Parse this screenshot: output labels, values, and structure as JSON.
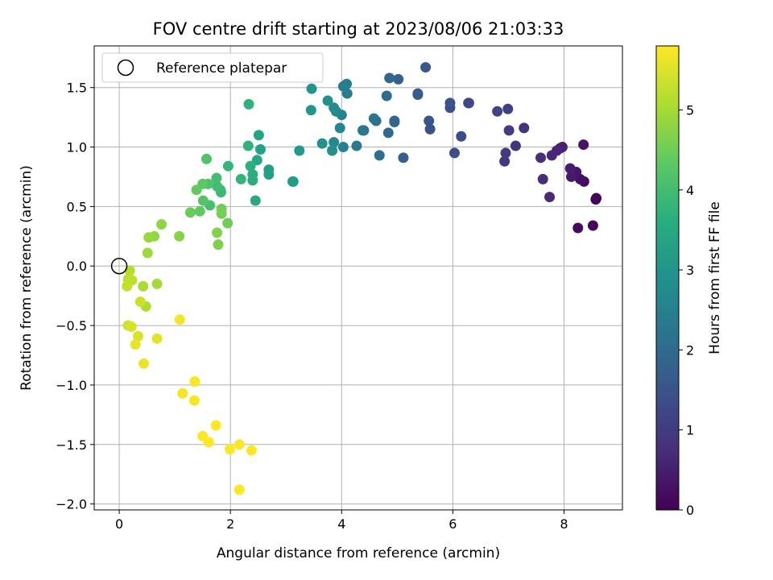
{
  "chart_data": {
    "type": "scatter",
    "title": "FOV centre drift starting at 2023/08/06 21:03:33",
    "xlabel": "Angular distance from reference (arcmin)",
    "ylabel": "Rotation from reference (arcmin)",
    "xlim": [
      -0.45,
      9.05
    ],
    "ylim": [
      -2.05,
      1.85
    ],
    "x_ticks": [
      0,
      2,
      4,
      6,
      8
    ],
    "y_ticks": [
      -2.0,
      -1.5,
      -1.0,
      -0.5,
      0.0,
      0.5,
      1.0,
      1.5
    ],
    "x_tick_labels": [
      "0",
      "2",
      "4",
      "6",
      "8"
    ],
    "y_tick_labels": [
      "−2.0",
      "−1.5",
      "−1.0",
      "−0.5",
      "0.0",
      "0.5",
      "1.0",
      "1.5"
    ],
    "grid": true,
    "legend": {
      "location": "upper-left",
      "entries": [
        "Reference platepar"
      ]
    },
    "reference_point": {
      "x": 0,
      "y": 0
    },
    "colorbar": {
      "label": "Hours from first FF file",
      "colormap": "viridis",
      "range": [
        0,
        5.8
      ],
      "ticks": [
        0,
        1,
        2,
        3,
        4,
        5
      ],
      "tick_labels": [
        "0",
        "1",
        "2",
        "3",
        "4",
        "5"
      ]
    },
    "points": [
      {
        "x": 8.58,
        "y": 0.57,
        "c": 0.0
      },
      {
        "x": 8.57,
        "y": 0.56,
        "c": 0.05
      },
      {
        "x": 8.52,
        "y": 0.34,
        "c": 0.1
      },
      {
        "x": 8.25,
        "y": 0.32,
        "c": 0.15
      },
      {
        "x": 8.36,
        "y": 0.71,
        "c": 0.2
      },
      {
        "x": 8.29,
        "y": 0.73,
        "c": 0.25
      },
      {
        "x": 8.35,
        "y": 1.02,
        "c": 0.3
      },
      {
        "x": 8.22,
        "y": 0.79,
        "c": 0.35
      },
      {
        "x": 8.13,
        "y": 0.75,
        "c": 0.4
      },
      {
        "x": 8.11,
        "y": 0.82,
        "c": 0.45
      },
      {
        "x": 7.97,
        "y": 1.0,
        "c": 0.5
      },
      {
        "x": 7.93,
        "y": 0.99,
        "c": 0.55
      },
      {
        "x": 7.87,
        "y": 0.97,
        "c": 0.6
      },
      {
        "x": 7.78,
        "y": 0.93,
        "c": 0.65
      },
      {
        "x": 7.74,
        "y": 0.58,
        "c": 0.7
      },
      {
        "x": 7.62,
        "y": 0.73,
        "c": 0.75
      },
      {
        "x": 7.58,
        "y": 0.91,
        "c": 0.8
      },
      {
        "x": 7.28,
        "y": 1.16,
        "c": 0.85
      },
      {
        "x": 7.13,
        "y": 1.01,
        "c": 0.9
      },
      {
        "x": 6.93,
        "y": 0.88,
        "c": 0.95
      },
      {
        "x": 6.95,
        "y": 0.95,
        "c": 1.0
      },
      {
        "x": 7.01,
        "y": 1.14,
        "c": 1.05
      },
      {
        "x": 6.99,
        "y": 1.32,
        "c": 1.1
      },
      {
        "x": 6.8,
        "y": 1.3,
        "c": 1.15
      },
      {
        "x": 6.29,
        "y": 1.37,
        "c": 1.2
      },
      {
        "x": 6.28,
        "y": 1.37,
        "c": 1.25
      },
      {
        "x": 6.15,
        "y": 1.09,
        "c": 1.3
      },
      {
        "x": 6.03,
        "y": 0.95,
        "c": 1.35
      },
      {
        "x": 5.95,
        "y": 1.33,
        "c": 1.4
      },
      {
        "x": 5.95,
        "y": 1.37,
        "c": 1.45
      },
      {
        "x": 5.59,
        "y": 1.15,
        "c": 1.5
      },
      {
        "x": 5.57,
        "y": 1.22,
        "c": 1.55
      },
      {
        "x": 5.51,
        "y": 1.67,
        "c": 1.6
      },
      {
        "x": 5.37,
        "y": 1.44,
        "c": 1.65
      },
      {
        "x": 5.37,
        "y": 1.45,
        "c": 1.7
      },
      {
        "x": 5.11,
        "y": 0.91,
        "c": 1.75
      },
      {
        "x": 5.02,
        "y": 1.57,
        "c": 1.8
      },
      {
        "x": 4.95,
        "y": 1.22,
        "c": 1.85
      },
      {
        "x": 4.95,
        "y": 1.21,
        "c": 1.9
      },
      {
        "x": 4.86,
        "y": 1.58,
        "c": 1.95
      },
      {
        "x": 4.84,
        "y": 1.12,
        "c": 2.0
      },
      {
        "x": 4.81,
        "y": 1.43,
        "c": 2.05
      },
      {
        "x": 4.68,
        "y": 0.93,
        "c": 2.1
      },
      {
        "x": 4.62,
        "y": 1.22,
        "c": 2.15
      },
      {
        "x": 4.58,
        "y": 1.24,
        "c": 2.2
      },
      {
        "x": 4.4,
        "y": 1.14,
        "c": 2.25
      },
      {
        "x": 4.38,
        "y": 1.14,
        "c": 2.3
      },
      {
        "x": 4.27,
        "y": 1.01,
        "c": 2.35
      },
      {
        "x": 4.1,
        "y": 1.45,
        "c": 2.4
      },
      {
        "x": 4.09,
        "y": 1.53,
        "c": 2.45
      },
      {
        "x": 4.03,
        "y": 1.51,
        "c": 2.5
      },
      {
        "x": 4.03,
        "y": 1.0,
        "c": 2.55
      },
      {
        "x": 4.0,
        "y": 1.27,
        "c": 2.6
      },
      {
        "x": 3.97,
        "y": 1.16,
        "c": 2.65
      },
      {
        "x": 3.9,
        "y": 1.3,
        "c": 2.7
      },
      {
        "x": 3.86,
        "y": 1.04,
        "c": 2.75
      },
      {
        "x": 3.86,
        "y": 1.33,
        "c": 2.8
      },
      {
        "x": 3.83,
        "y": 0.97,
        "c": 2.85
      },
      {
        "x": 3.75,
        "y": 1.39,
        "c": 2.9
      },
      {
        "x": 3.65,
        "y": 1.03,
        "c": 2.95
      },
      {
        "x": 3.46,
        "y": 1.49,
        "c": 3.0
      },
      {
        "x": 3.45,
        "y": 1.31,
        "c": 3.05
      },
      {
        "x": 3.24,
        "y": 0.97,
        "c": 3.1
      },
      {
        "x": 3.13,
        "y": 0.71,
        "c": 3.15
      },
      {
        "x": 3.12,
        "y": 0.71,
        "c": 3.2
      },
      {
        "x": 2.69,
        "y": 0.81,
        "c": 3.25
      },
      {
        "x": 2.69,
        "y": 0.77,
        "c": 3.3
      },
      {
        "x": 2.54,
        "y": 0.98,
        "c": 3.35
      },
      {
        "x": 2.51,
        "y": 1.1,
        "c": 3.4
      },
      {
        "x": 2.48,
        "y": 0.89,
        "c": 3.45
      },
      {
        "x": 2.45,
        "y": 0.55,
        "c": 3.5
      },
      {
        "x": 2.4,
        "y": 0.72,
        "c": 3.55
      },
      {
        "x": 2.4,
        "y": 0.77,
        "c": 3.6
      },
      {
        "x": 2.36,
        "y": 0.84,
        "c": 3.65
      },
      {
        "x": 2.33,
        "y": 1.36,
        "c": 3.7
      },
      {
        "x": 2.32,
        "y": 1.01,
        "c": 3.75
      },
      {
        "x": 2.19,
        "y": 0.73,
        "c": 3.8
      },
      {
        "x": 1.96,
        "y": 0.84,
        "c": 3.85
      },
      {
        "x": 1.83,
        "y": 0.62,
        "c": 3.9
      },
      {
        "x": 1.82,
        "y": 0.64,
        "c": 3.95
      },
      {
        "x": 1.76,
        "y": 0.67,
        "c": 4.0
      },
      {
        "x": 1.75,
        "y": 0.74,
        "c": 4.05
      },
      {
        "x": 1.63,
        "y": 0.51,
        "c": 4.1
      },
      {
        "x": 1.6,
        "y": 0.69,
        "c": 4.15
      },
      {
        "x": 1.57,
        "y": 0.9,
        "c": 4.2
      },
      {
        "x": 1.51,
        "y": 0.55,
        "c": 4.25
      },
      {
        "x": 1.5,
        "y": 0.69,
        "c": 4.3
      },
      {
        "x": 1.45,
        "y": 0.46,
        "c": 4.35
      },
      {
        "x": 1.39,
        "y": 0.64,
        "c": 4.4
      },
      {
        "x": 1.28,
        "y": 0.45,
        "c": 4.45
      },
      {
        "x": 1.95,
        "y": 0.36,
        "c": 4.5
      },
      {
        "x": 1.84,
        "y": 0.48,
        "c": 4.55
      },
      {
        "x": 1.84,
        "y": 0.44,
        "c": 4.6
      },
      {
        "x": 1.78,
        "y": 0.18,
        "c": 4.65
      },
      {
        "x": 1.76,
        "y": 0.28,
        "c": 4.7
      },
      {
        "x": 1.08,
        "y": 0.25,
        "c": 4.75
      },
      {
        "x": 0.76,
        "y": 0.35,
        "c": 4.8
      },
      {
        "x": 0.63,
        "y": 0.25,
        "c": 4.85
      },
      {
        "x": 0.53,
        "y": 0.24,
        "c": 4.9
      },
      {
        "x": 0.51,
        "y": 0.11,
        "c": 4.95
      },
      {
        "x": 0.68,
        "y": -0.15,
        "c": 5.0
      },
      {
        "x": 0.43,
        "y": -0.17,
        "c": 5.05
      },
      {
        "x": 0.48,
        "y": -0.34,
        "c": 5.1
      },
      {
        "x": 0.19,
        "y": -0.04,
        "c": 5.15
      },
      {
        "x": 0.16,
        "y": -0.11,
        "c": 5.2
      },
      {
        "x": 0.23,
        "y": -0.12,
        "c": 5.25
      },
      {
        "x": 0.14,
        "y": -0.17,
        "c": 5.3
      },
      {
        "x": 0.38,
        "y": -0.3,
        "c": 5.35
      },
      {
        "x": 0.16,
        "y": -0.5,
        "c": 5.4
      },
      {
        "x": 0.22,
        "y": -0.51,
        "c": 5.45
      },
      {
        "x": 0.34,
        "y": -0.59,
        "c": 5.5
      },
      {
        "x": 0.68,
        "y": -0.61,
        "c": 5.55
      },
      {
        "x": 0.29,
        "y": -0.66,
        "c": 5.6
      },
      {
        "x": 0.44,
        "y": -0.82,
        "c": 5.65
      },
      {
        "x": 1.09,
        "y": -0.45,
        "c": 5.7
      },
      {
        "x": 1.14,
        "y": -1.07,
        "c": 5.72
      },
      {
        "x": 1.36,
        "y": -0.97,
        "c": 5.74
      },
      {
        "x": 1.35,
        "y": -1.13,
        "c": 5.76
      },
      {
        "x": 1.5,
        "y": -1.43,
        "c": 5.78
      },
      {
        "x": 1.61,
        "y": -1.48,
        "c": 5.79
      },
      {
        "x": 1.74,
        "y": -1.34,
        "c": 5.8
      },
      {
        "x": 1.99,
        "y": -1.54,
        "c": 5.8
      },
      {
        "x": 2.16,
        "y": -1.5,
        "c": 5.8
      },
      {
        "x": 2.38,
        "y": -1.55,
        "c": 5.8
      },
      {
        "x": 2.16,
        "y": -1.88,
        "c": 5.8
      }
    ]
  }
}
